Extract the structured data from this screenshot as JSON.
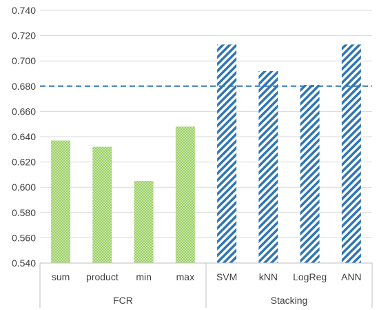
{
  "chart_data": {
    "type": "bar",
    "title": "",
    "xlabel": "",
    "ylabel": "",
    "ylim": [
      0.54,
      0.74
    ],
    "yticks": [
      "0.540",
      "0.560",
      "0.580",
      "0.600",
      "0.620",
      "0.640",
      "0.660",
      "0.680",
      "0.700",
      "0.720",
      "0.740"
    ],
    "grid": "horizontal",
    "legend": "none",
    "groups": [
      {
        "name": "FCR",
        "pattern": "dotted-green",
        "color": "#92d050",
        "categories": [
          "sum",
          "product",
          "min",
          "max"
        ],
        "values": [
          0.637,
          0.632,
          0.605,
          0.648
        ]
      },
      {
        "name": "Stacking",
        "pattern": "diagonal-stripes-blue",
        "color": "#2e75b6",
        "categories": [
          "SVM",
          "kNN",
          "LogReg",
          "ANN"
        ],
        "values": [
          0.713,
          0.692,
          0.681,
          0.713
        ]
      }
    ],
    "reference_line": {
      "value": 0.68,
      "style": "dashed",
      "color": "#2e75b6"
    }
  }
}
